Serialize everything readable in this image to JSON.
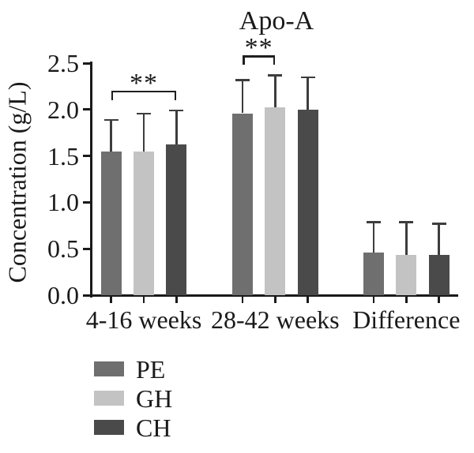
{
  "chart_data": {
    "type": "bar",
    "title": "Apo-A",
    "ylabel": "Concentration (g/L)",
    "xlabel": "",
    "ylim": [
      0,
      2.5
    ],
    "yticks": [
      "0.0",
      "0.5",
      "1.0",
      "1.5",
      "2.0",
      "2.5"
    ],
    "grid": false,
    "background": "#ffffff",
    "axis_color": "#1a1a1a",
    "error_bar_color": "#3d3d3d",
    "categories": [
      "4-16 weeks",
      "28-42 weeks",
      "Difference"
    ],
    "series": [
      {
        "name": "PE",
        "color": "#6f6f6f",
        "values": [
          1.55,
          1.96,
          0.46
        ],
        "errors_plus": [
          0.34,
          0.36,
          0.33
        ]
      },
      {
        "name": "GH",
        "color": "#c3c3c3",
        "values": [
          1.55,
          2.02,
          0.43
        ],
        "errors_plus": [
          0.41,
          0.35,
          0.36
        ]
      },
      {
        "name": "CH",
        "color": "#4a4a4a",
        "values": [
          1.62,
          2.0,
          0.43
        ],
        "errors_plus": [
          0.37,
          0.35,
          0.34
        ]
      }
    ],
    "significance": [
      {
        "category_index": 0,
        "from_series": 0,
        "to_series": 2,
        "label": "**"
      },
      {
        "category_index": 1,
        "from_series": 0,
        "to_series": 1,
        "label": "**"
      }
    ],
    "legend_position": "bottom-left",
    "legend": [
      "PE",
      "GH",
      "CH"
    ]
  }
}
